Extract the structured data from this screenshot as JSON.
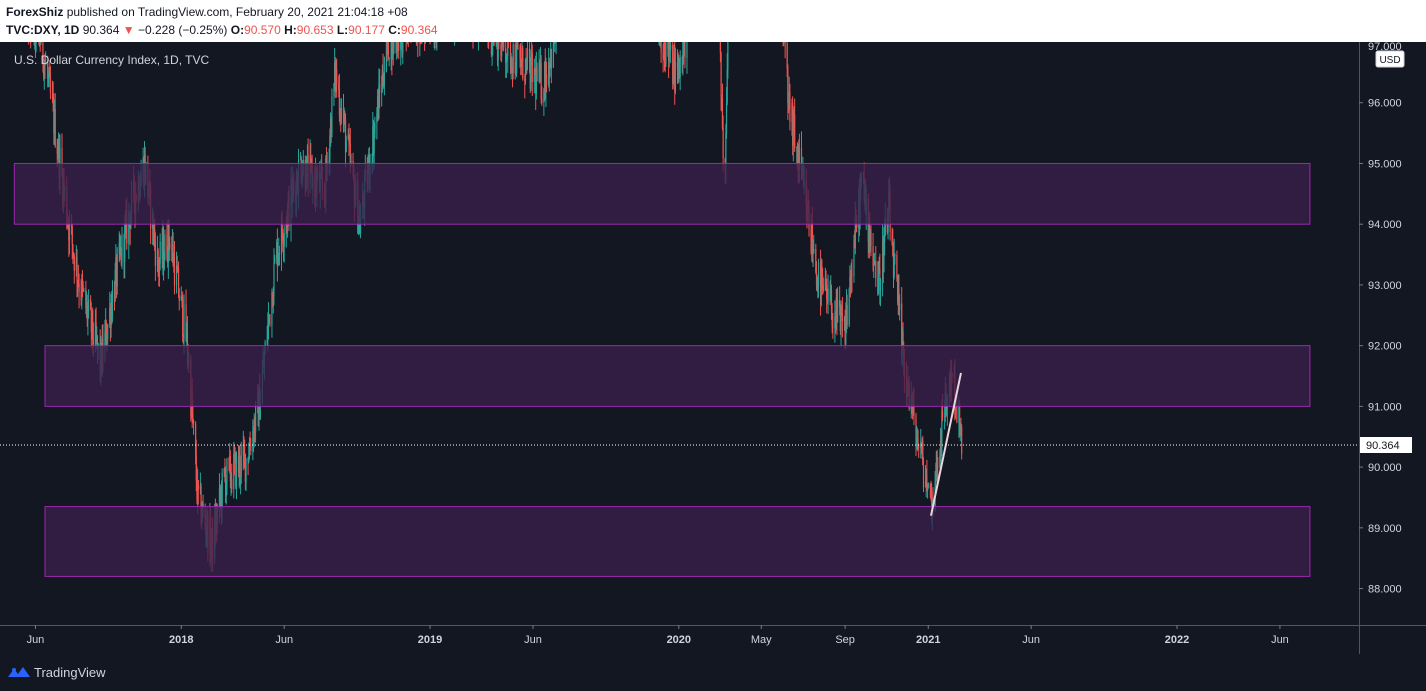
{
  "header": {
    "author": "ForexShiz",
    "published_text": "published on TradingView.com, February 20, 2021 21:04:18 +08",
    "symbol": "TVC:DXY, 1D",
    "last": "90.364",
    "change_arrow": "▼",
    "change": "−0.228 (−0.25%)",
    "open_label": "O:",
    "open": "90.570",
    "high_label": "H:",
    "high": "90.653",
    "low_label": "L:",
    "low": "90.177",
    "close_label": "C:",
    "close": "90.364"
  },
  "chart": {
    "legend_title": "U.S. Dollar Currency Index, 1D, TVC",
    "currency": "USD",
    "last_price_label": "90.364",
    "top_cut_label": "97.000"
  },
  "footer": {
    "brand": "TradingView"
  },
  "colors": {
    "background": "#131722",
    "up": "#26a69a",
    "down": "#ef5350",
    "zone_fill": "#3a1f4a",
    "zone_border": "#9c27b0",
    "trendline": "#e8d5e0"
  },
  "chart_data": {
    "type": "candlestick",
    "y_axis": {
      "range": [
        87.4,
        97.0
      ],
      "ticks": [
        "88.000",
        "89.000",
        "90.000",
        "91.000",
        "92.000",
        "93.000",
        "94.000",
        "95.000",
        "96.000"
      ]
    },
    "x_axis": {
      "ticks": [
        {
          "label": "Jun",
          "date": "2017-06-01",
          "bold": false
        },
        {
          "label": "2018",
          "date": "2018-01-01",
          "bold": true
        },
        {
          "label": "Jun",
          "date": "2018-06-01",
          "bold": false
        },
        {
          "label": "2019",
          "date": "2019-01-01",
          "bold": true
        },
        {
          "label": "Jun",
          "date": "2019-06-01",
          "bold": false
        },
        {
          "label": "2020",
          "date": "2020-01-01",
          "bold": true
        },
        {
          "label": "May",
          "date": "2020-05-01",
          "bold": false
        },
        {
          "label": "Sep",
          "date": "2020-09-01",
          "bold": false
        },
        {
          "label": "2021",
          "date": "2021-01-01",
          "bold": true
        },
        {
          "label": "Jun",
          "date": "2021-06-01",
          "bold": false
        },
        {
          "label": "2022",
          "date": "2022-01-01",
          "bold": true
        },
        {
          "label": "Jun",
          "date": "2022-06-01",
          "bold": false
        }
      ]
    },
    "path_points": [
      [
        "2017-05-15",
        97.5
      ],
      [
        "2017-06-10",
        97.0
      ],
      [
        "2017-07-01",
        95.5
      ],
      [
        "2017-07-20",
        94.0
      ],
      [
        "2017-08-05",
        93.0
      ],
      [
        "2017-09-05",
        91.7
      ],
      [
        "2017-09-25",
        93.0
      ],
      [
        "2017-10-20",
        94.3
      ],
      [
        "2017-11-08",
        95.0
      ],
      [
        "2017-11-28",
        93.3
      ],
      [
        "2017-12-15",
        93.8
      ],
      [
        "2018-01-10",
        92.0
      ],
      [
        "2018-01-25",
        89.5
      ],
      [
        "2018-02-15",
        88.7
      ],
      [
        "2018-03-05",
        89.8
      ],
      [
        "2018-04-05",
        90.1
      ],
      [
        "2018-04-25",
        91.0
      ],
      [
        "2018-05-20",
        93.5
      ],
      [
        "2018-06-25",
        95.0
      ],
      [
        "2018-07-30",
        94.5
      ],
      [
        "2018-08-15",
        96.5
      ],
      [
        "2018-09-20",
        94.0
      ],
      [
        "2018-10-31",
        97.0
      ],
      [
        "2018-12-10",
        97.3
      ],
      [
        "2019-03-01",
        97.5
      ],
      [
        "2019-06-15",
        96.3
      ],
      [
        "2019-07-25",
        98.0
      ],
      [
        "2019-10-01",
        99.0
      ],
      [
        "2019-12-30",
        96.4
      ],
      [
        "2020-02-20",
        99.5
      ],
      [
        "2020-03-09",
        94.6
      ],
      [
        "2020-03-20",
        102.5
      ],
      [
        "2020-05-20",
        99.5
      ],
      [
        "2020-06-10",
        96.0
      ],
      [
        "2020-07-25",
        93.0
      ],
      [
        "2020-08-31",
        92.2
      ],
      [
        "2020-09-25",
        94.7
      ],
      [
        "2020-10-20",
        93.0
      ],
      [
        "2020-11-04",
        94.2
      ],
      [
        "2020-11-25",
        91.8
      ],
      [
        "2020-12-15",
        90.5
      ],
      [
        "2021-01-06",
        89.4
      ],
      [
        "2021-01-20",
        90.6
      ],
      [
        "2021-02-05",
        91.6
      ],
      [
        "2021-02-19",
        90.36
      ]
    ],
    "zones": [
      {
        "from": "2017-05-01",
        "to": "2022-07-15",
        "low": 94.0,
        "high": 95.0
      },
      {
        "from": "2017-06-15",
        "to": "2022-07-15",
        "low": 91.0,
        "high": 92.0
      },
      {
        "from": "2017-06-15",
        "to": "2022-07-15",
        "low": 88.2,
        "high": 89.35
      }
    ],
    "trendline": {
      "from": [
        "2021-01-05",
        89.2
      ],
      "to": [
        "2021-02-18",
        91.55
      ]
    },
    "last_price": 90.364
  }
}
